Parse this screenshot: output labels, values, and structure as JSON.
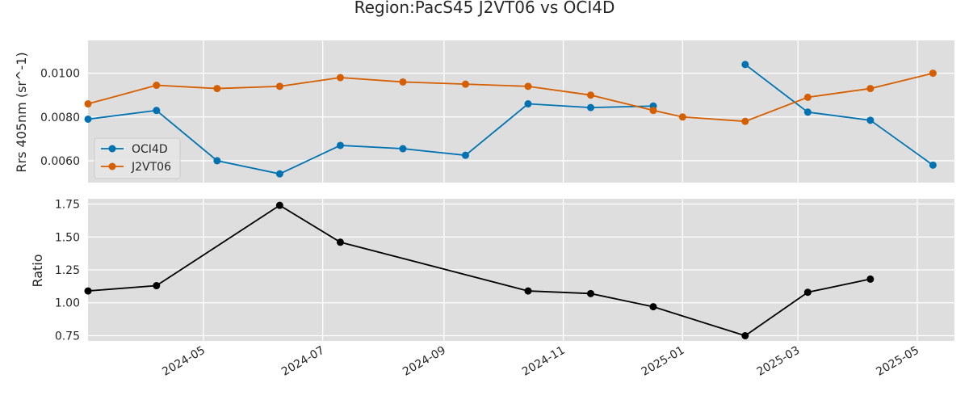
{
  "chart_data": {
    "type": "line",
    "title": "Region:PacS45 J2VT06 vs OCI4D",
    "x_ticks": [
      "2024-05",
      "2024-07",
      "2024-09",
      "2024-11",
      "2025-01",
      "2025-03",
      "2025-05"
    ],
    "panels": [
      {
        "ylabel": "Rrs 405nm (sr^-1)",
        "ylim": [
          0.005,
          0.0115
        ],
        "yticks": [
          "0.0060",
          "0.0080",
          "0.0100"
        ],
        "legend_position": "center-left",
        "series": [
          {
            "name": "OCI4D",
            "color": "#0072B2",
            "x": [
              "2024-03-03",
              "2024-04-07",
              "2024-05-08",
              "2024-06-09",
              "2024-07-10",
              "2024-08-11",
              "2024-09-12",
              "2024-10-14",
              "2024-11-15",
              "2024-12-17",
              "2025-02-02",
              "2025-03-06",
              "2025-04-07",
              "2025-05-09"
            ],
            "values": [
              0.0079,
              0.0083,
              0.006,
              0.0054,
              0.0067,
              0.00655,
              0.00625,
              0.0086,
              0.00843,
              0.0085,
              0.0104,
              0.00822,
              0.00785,
              0.0058
            ],
            "breaks_after": [
              9
            ]
          },
          {
            "name": "J2VT06",
            "color": "#D55E00",
            "x": [
              "2024-03-03",
              "2024-04-07",
              "2024-05-08",
              "2024-06-09",
              "2024-07-10",
              "2024-08-11",
              "2024-09-12",
              "2024-10-14",
              "2024-11-15",
              "2024-12-17",
              "2025-01-01",
              "2025-02-02",
              "2025-03-06",
              "2025-04-07",
              "2025-05-09"
            ],
            "values": [
              0.0086,
              0.00945,
              0.0093,
              0.0094,
              0.0098,
              0.0096,
              0.0095,
              0.0094,
              0.009,
              0.0083,
              0.008,
              0.0078,
              0.0089,
              0.0093,
              0.01
            ],
            "breaks_after": []
          }
        ]
      },
      {
        "ylabel": "Ratio",
        "ylim": [
          0.71,
          1.79
        ],
        "yticks": [
          "0.75",
          "1.00",
          "1.25",
          "1.50",
          "1.75"
        ],
        "series": [
          {
            "name": "",
            "color": "#000000",
            "x": [
              "2024-03-03",
              "2024-04-07",
              "2024-06-09",
              "2024-07-10",
              "2024-10-14",
              "2024-11-15",
              "2024-12-17",
              "2025-02-02",
              "2025-03-06",
              "2025-04-07"
            ],
            "values": [
              1.09,
              1.13,
              1.74,
              1.46,
              1.09,
              1.07,
              0.97,
              0.75,
              1.08,
              1.18
            ],
            "breaks_after": []
          }
        ]
      }
    ]
  }
}
